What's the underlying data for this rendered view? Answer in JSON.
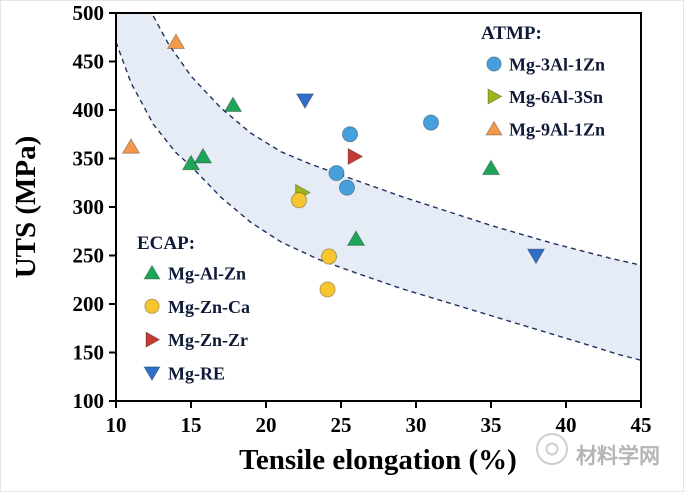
{
  "watermark": {
    "text": "材料学网"
  },
  "chart_data": {
    "type": "scatter",
    "xlabel": "Tensile elongation (%)",
    "ylabel": "UTS (MPa)",
    "xlim": [
      10,
      45
    ],
    "ylim": [
      100,
      500
    ],
    "xticks": [
      10,
      15,
      20,
      25,
      30,
      35,
      40,
      45
    ],
    "yticks": [
      100,
      150,
      200,
      250,
      300,
      350,
      400,
      450,
      500
    ],
    "grid": false,
    "legend_atmp": {
      "title": "ATMP:",
      "items": [
        "Mg-3Al-1Zn",
        "Mg-6Al-3Sn",
        "Mg-9Al-1Zn"
      ]
    },
    "legend_ecap": {
      "title": "ECAP:",
      "items": [
        "Mg-Al-Zn",
        "Mg-Zn-Ca",
        "Mg-Zn-Zr",
        "Mg-RE"
      ]
    },
    "series": [
      {
        "name": "Mg-3Al-1Zn",
        "group": "ATMP",
        "marker": "circle",
        "color": "#45A0DC",
        "points": [
          [
            24.7,
            335
          ],
          [
            25.6,
            375
          ],
          [
            25.4,
            320
          ],
          [
            31,
            387
          ]
        ]
      },
      {
        "name": "Mg-6Al-3Sn",
        "group": "ATMP",
        "marker": "triangle-right",
        "color": "#9DB41A",
        "points": [
          [
            22.4,
            315
          ]
        ]
      },
      {
        "name": "Mg-9Al-1Zn",
        "group": "ATMP",
        "marker": "triangle-up",
        "color": "#F2994A",
        "points": [
          [
            11,
            362
          ],
          [
            14,
            470
          ]
        ]
      },
      {
        "name": "Mg-Al-Zn",
        "group": "ECAP",
        "marker": "triangle-up",
        "color": "#1FA55A",
        "points": [
          [
            15,
            345
          ],
          [
            15.8,
            352
          ],
          [
            17.8,
            405
          ],
          [
            26,
            267
          ],
          [
            35,
            340
          ]
        ]
      },
      {
        "name": "Mg-Zn-Ca",
        "group": "ECAP",
        "marker": "circle",
        "color": "#F7C52F",
        "points": [
          [
            22.2,
            307
          ],
          [
            24.2,
            249
          ],
          [
            24.1,
            215
          ]
        ]
      },
      {
        "name": "Mg-Zn-Zr",
        "group": "ECAP",
        "marker": "triangle-right",
        "color": "#C63A35",
        "points": [
          [
            25.9,
            352
          ]
        ]
      },
      {
        "name": "Mg-RE",
        "group": "ECAP",
        "marker": "triangle-down",
        "color": "#2E6FC9",
        "points": [
          [
            22.6,
            410
          ],
          [
            38,
            250
          ]
        ]
      }
    ],
    "band": {
      "fill": "#E6ECF6",
      "stroke": "#22305E",
      "upper": [
        [
          12.2,
          505
        ],
        [
          13.5,
          468
        ],
        [
          15,
          435
        ],
        [
          17,
          402
        ],
        [
          19,
          376
        ],
        [
          21,
          357
        ],
        [
          23,
          344
        ],
        [
          25,
          333
        ],
        [
          27,
          322
        ],
        [
          29,
          311
        ],
        [
          31,
          301
        ],
        [
          33,
          291
        ],
        [
          35,
          281
        ],
        [
          37,
          272
        ],
        [
          39,
          263
        ],
        [
          41,
          255
        ],
        [
          43,
          247
        ],
        [
          45,
          240
        ]
      ],
      "lower": [
        [
          10,
          470
        ],
        [
          11,
          428
        ],
        [
          12.5,
          385
        ],
        [
          14,
          356
        ],
        [
          15,
          342
        ],
        [
          17,
          310
        ],
        [
          19,
          284
        ],
        [
          21,
          264
        ],
        [
          23.5,
          246
        ],
        [
          26,
          232
        ],
        [
          29,
          216
        ],
        [
          32,
          202
        ],
        [
          35,
          188
        ],
        [
          38,
          174
        ],
        [
          41,
          160
        ],
        [
          43.5,
          148
        ],
        [
          45,
          142
        ]
      ]
    }
  }
}
